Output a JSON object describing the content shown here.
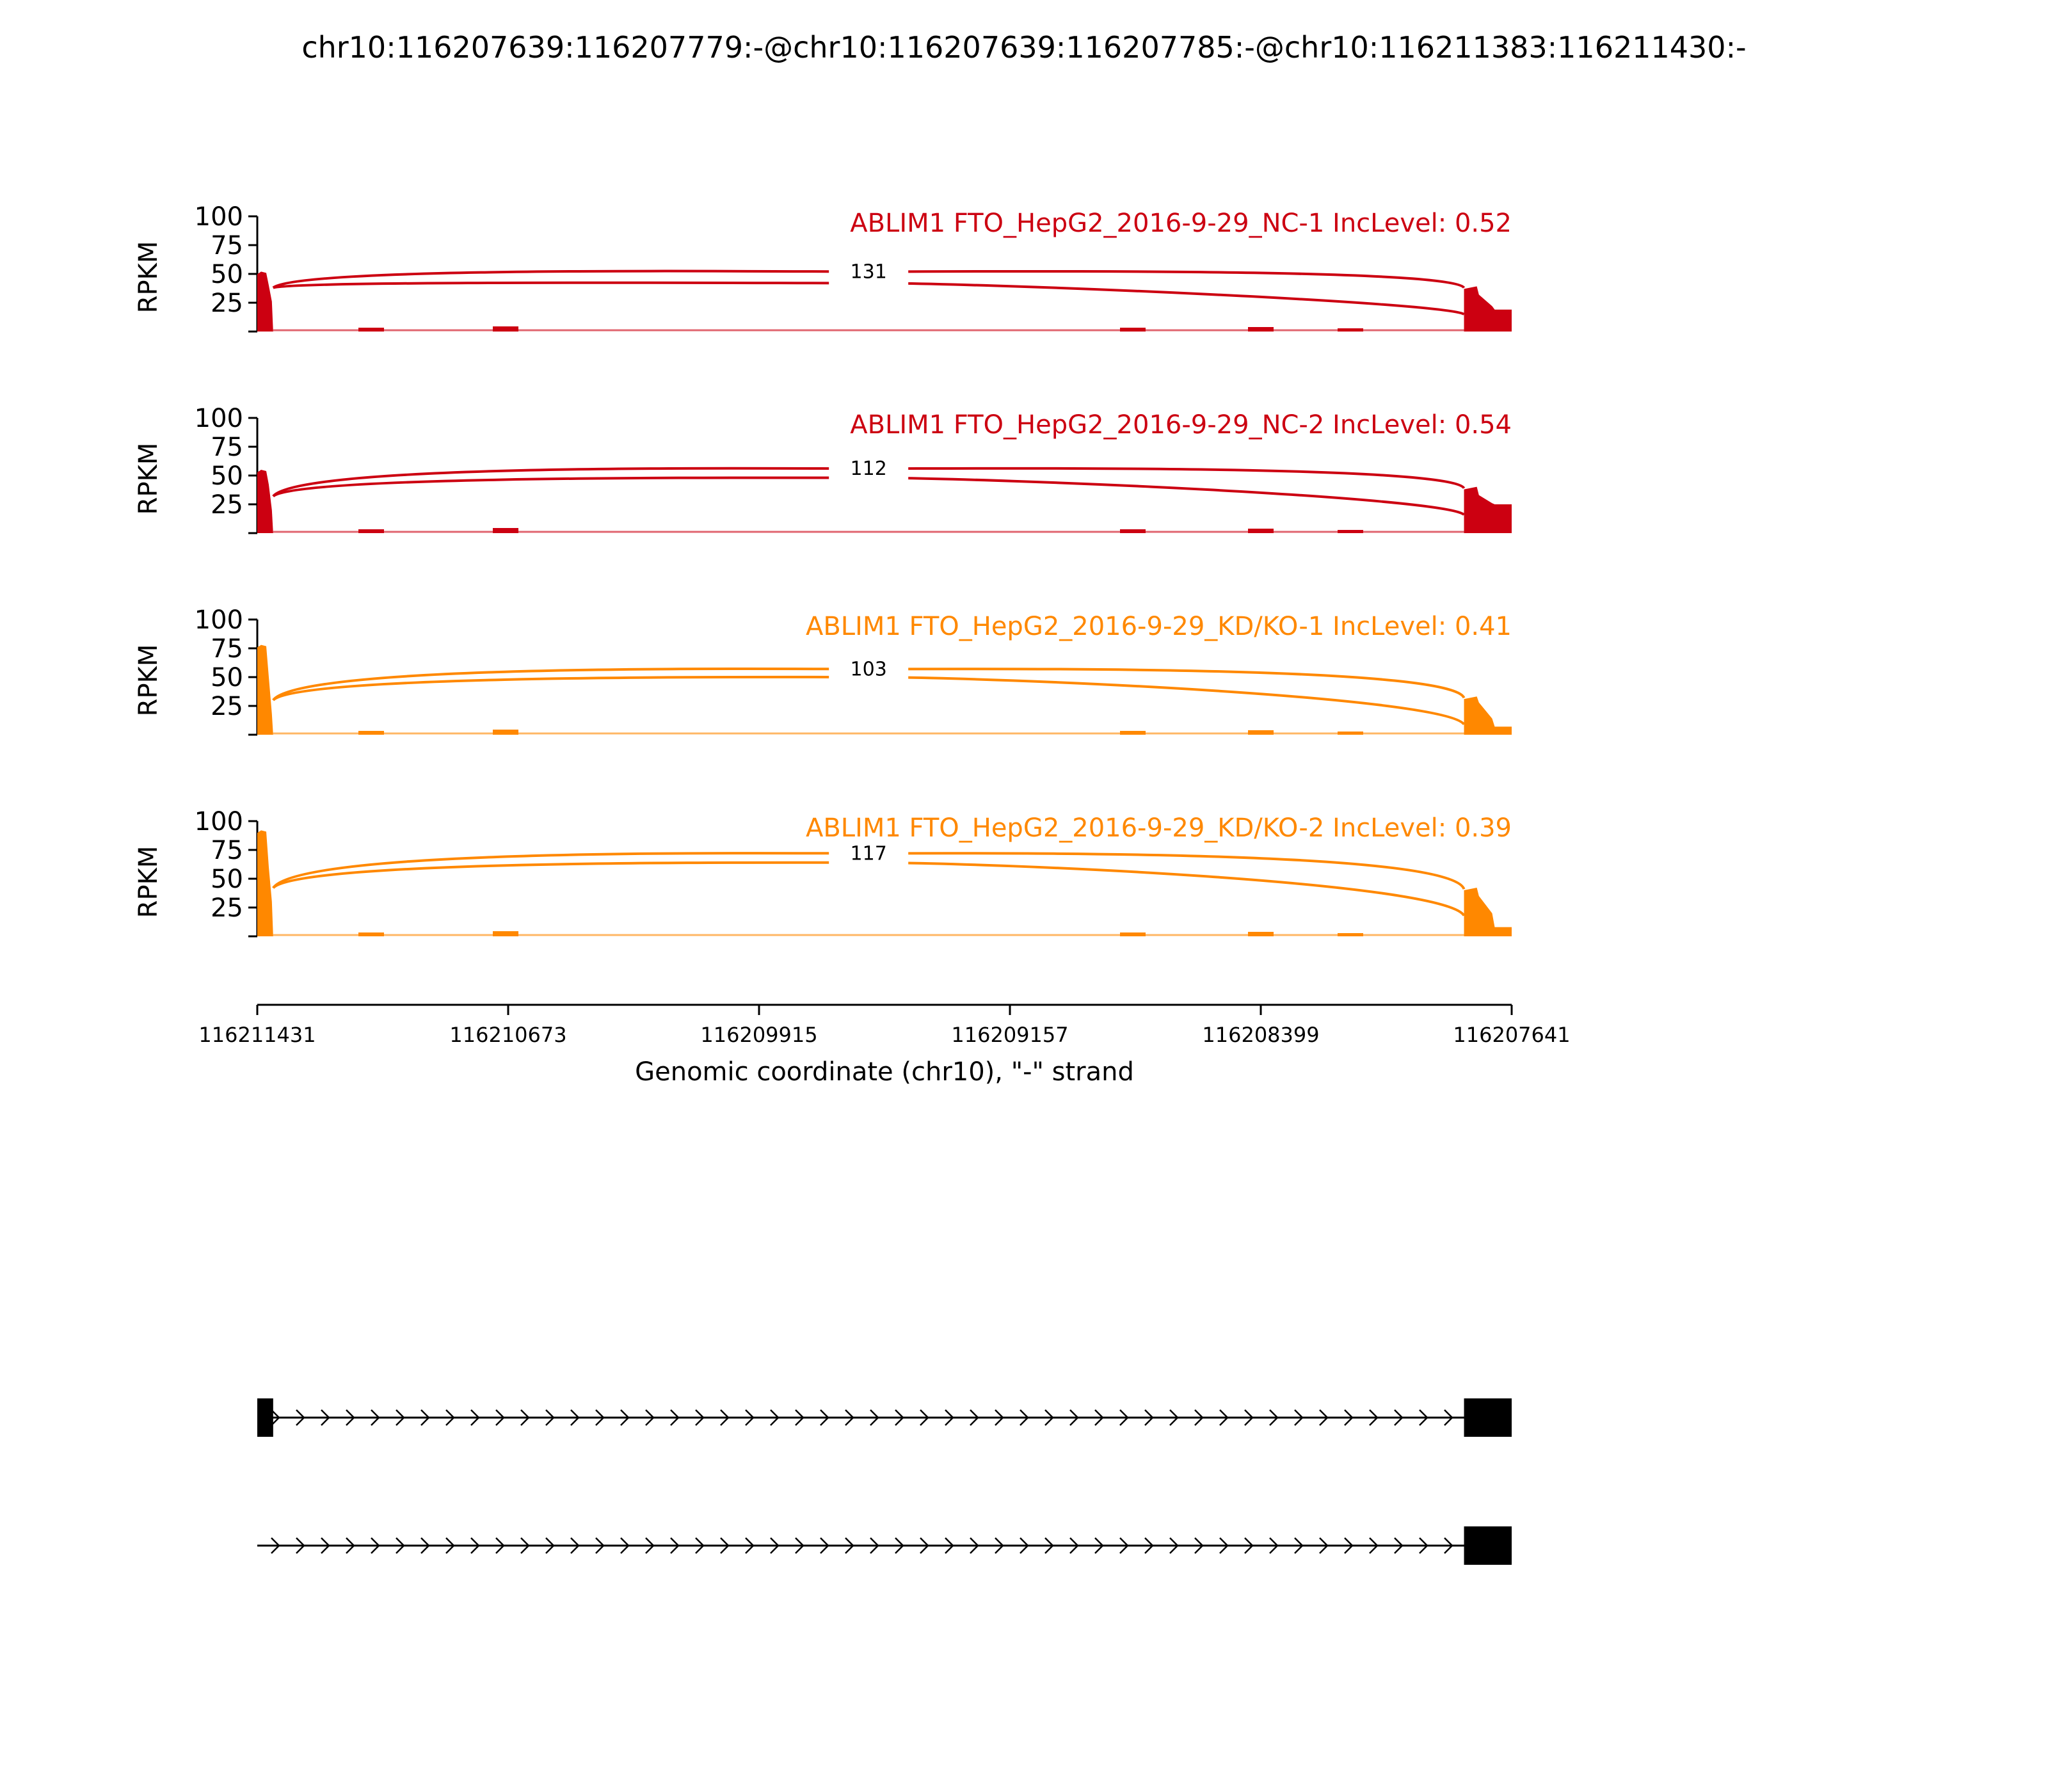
{
  "title": "chr10:116207639:116207779:-@chr10:116207639:116207785:-@chr10:116211383:116211430:-",
  "colors": {
    "nc": "#CC0011",
    "kd": "#FF8800",
    "axis": "#000000"
  },
  "chart_data": {
    "type": "area",
    "x_axis": {
      "label": "Genomic coordinate (chr10), \"-\" strand",
      "ticks": [
        "116211431",
        "116210673",
        "116209915",
        "116209157",
        "116208399",
        "116207641"
      ],
      "range": [
        116211431,
        116207641
      ]
    },
    "y_axis": {
      "label": "RPKM",
      "ticks": [
        "25",
        "50",
        "75",
        "100"
      ],
      "ylim": [
        0,
        100
      ]
    },
    "tracks": [
      {
        "label": "ABLIM1 FTO_HepG2_2016-9-29_NC-1 IncLevel: 0.52",
        "group": "nc",
        "junction_count": "131",
        "coverage": [
          {
            "x": 116211430,
            "y": 52
          },
          {
            "x": 116211400,
            "y": 40
          },
          {
            "x": 116211383,
            "y": 26
          },
          {
            "x": 116207785,
            "y": 37
          },
          {
            "x": 116207740,
            "y": 32
          },
          {
            "x": 116207700,
            "y": 22
          },
          {
            "x": 116207641,
            "y": 19
          }
        ],
        "junction_peak": 52,
        "junction_peak_inner": 42
      },
      {
        "label": "ABLIM1 FTO_HepG2_2016-9-29_NC-2 IncLevel: 0.54",
        "group": "nc",
        "junction_count": "112",
        "coverage": [
          {
            "x": 116211430,
            "y": 55
          },
          {
            "x": 116211400,
            "y": 42
          },
          {
            "x": 116211383,
            "y": 20
          },
          {
            "x": 116207785,
            "y": 38
          },
          {
            "x": 116207740,
            "y": 33
          },
          {
            "x": 116207700,
            "y": 26
          },
          {
            "x": 116207641,
            "y": 25
          }
        ],
        "junction_peak": 56,
        "junction_peak_inner": 48
      },
      {
        "label": "ABLIM1 FTO_HepG2_2016-9-29_KD/KO-1 IncLevel: 0.41",
        "group": "kd",
        "junction_count": "103",
        "coverage": [
          {
            "x": 116211430,
            "y": 78
          },
          {
            "x": 116211400,
            "y": 50
          },
          {
            "x": 116211383,
            "y": 18
          },
          {
            "x": 116207785,
            "y": 31
          },
          {
            "x": 116207740,
            "y": 28
          },
          {
            "x": 116207700,
            "y": 14
          },
          {
            "x": 116207641,
            "y": 7
          }
        ],
        "junction_peak": 57,
        "junction_peak_inner": 50
      },
      {
        "label": "ABLIM1 FTO_HepG2_2016-9-29_KD/KO-2 IncLevel: 0.39",
        "group": "kd",
        "junction_count": "117",
        "coverage": [
          {
            "x": 116211430,
            "y": 92
          },
          {
            "x": 116211400,
            "y": 60
          },
          {
            "x": 116211383,
            "y": 30
          },
          {
            "x": 116207785,
            "y": 40
          },
          {
            "x": 116207740,
            "y": 35
          },
          {
            "x": 116207700,
            "y": 20
          },
          {
            "x": 116207641,
            "y": 8
          }
        ],
        "junction_peak": 72,
        "junction_peak_inner": 64
      }
    ],
    "transcripts": [
      {
        "exons": [
          [
            116211431,
            116211383
          ],
          [
            116207785,
            116207641
          ]
        ]
      },
      {
        "exons": [
          [
            116207785,
            116207641
          ]
        ]
      }
    ]
  }
}
